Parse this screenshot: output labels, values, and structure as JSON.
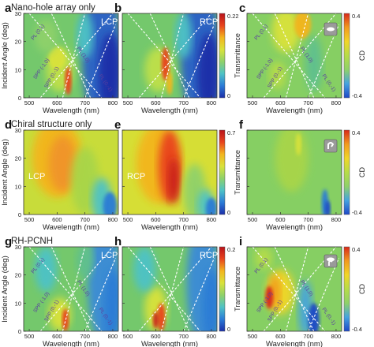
{
  "rows": [
    {
      "title": "Nano-hole array only",
      "panel_letters": [
        "a",
        "b",
        "c"
      ]
    },
    {
      "title": "Chiral structure only",
      "panel_letters": [
        "d",
        "e",
        "f"
      ]
    },
    {
      "title": "RH-PCNH",
      "panel_letters": [
        "g",
        "h",
        "i"
      ]
    }
  ],
  "axes": {
    "xlabel": "Wavelength (nm)",
    "ylabel": "Incident Angle (deg)",
    "x_ticks": [
      "500",
      "600",
      "700",
      "800"
    ],
    "y_ticks": [
      "0",
      "10",
      "20",
      "30"
    ]
  },
  "colorbars": [
    {
      "label": "Transmittance",
      "max": "0.22",
      "min": "0",
      "row": 0,
      "kind": "t"
    },
    {
      "label": "CD",
      "max": "0.4",
      "min": "-0.4",
      "row": 0,
      "kind": "cd"
    },
    {
      "label": "Transmittance",
      "max": "0.7",
      "min": "0",
      "row": 1,
      "kind": "t"
    },
    {
      "label": "CD",
      "max": "0.4",
      "min": "-0.4",
      "row": 1,
      "kind": "cd"
    },
    {
      "label": "Transmittance",
      "max": "0.2",
      "min": "0",
      "row": 2,
      "kind": "t"
    },
    {
      "label": "CD",
      "max": "0.4",
      "min": "-0.4",
      "row": 2,
      "kind": "cd"
    }
  ],
  "panel_labels": [
    {
      "letter": "a",
      "pol": "LCP"
    },
    {
      "letter": "b",
      "pol": "RCP"
    },
    {
      "letter": "c",
      "pol": ""
    },
    {
      "letter": "d",
      "pol": "LCP"
    },
    {
      "letter": "e",
      "pol": "RCP"
    },
    {
      "letter": "f",
      "pol": ""
    },
    {
      "letter": "g",
      "pol": "LCP"
    },
    {
      "letter": "h",
      "pol": "RCP"
    },
    {
      "letter": "i",
      "pol": ""
    }
  ],
  "mode_labels": [
    "PL (0,1)",
    "SPP (-1,0)",
    "SPP (0,-1)",
    "PL (1,0)",
    "PL (0,-1)"
  ],
  "colors": {
    "scale": [
      "#1b2fa8",
      "#2b7bd6",
      "#4ec2c6",
      "#8fd16a",
      "#d9e23b",
      "#f3b51f",
      "#e8431d",
      "#b8121a"
    ],
    "dispersion_lines": "#ffffff"
  },
  "chart_data": [
    {
      "type": "heatmap",
      "panel": "a",
      "xlim": [
        480,
        820
      ],
      "ylim": [
        0,
        30
      ],
      "colormap": "jet",
      "value_range": [
        0,
        0.22
      ],
      "features": "green background with bright yellow/red bands along dispersion lines, blue region at long wavelengths"
    },
    {
      "type": "heatmap",
      "panel": "b",
      "xlim": [
        480,
        820
      ],
      "ylim": [
        0,
        30
      ],
      "colormap": "jet",
      "value_range": [
        0,
        0.22
      ],
      "features": "similar to LCP nano-hole map"
    },
    {
      "type": "heatmap",
      "panel": "c",
      "xlim": [
        480,
        820
      ],
      "ylim": [
        0,
        30
      ],
      "colormap": "jet",
      "value_range": [
        -0.4,
        0.4
      ],
      "features": "mostly near-zero CD with small fluctuations"
    },
    {
      "type": "heatmap",
      "panel": "d",
      "xlim": [
        480,
        820
      ],
      "ylim": [
        0,
        30
      ],
      "colormap": "jet",
      "value_range": [
        0,
        0.7
      ],
      "features": "broad orange band around 560-640 nm"
    },
    {
      "type": "heatmap",
      "panel": "e",
      "xlim": [
        480,
        820
      ],
      "ylim": [
        0,
        30
      ],
      "colormap": "jet",
      "value_range": [
        0,
        0.7
      ],
      "features": "strong red band around 620-680 nm"
    },
    {
      "type": "heatmap",
      "panel": "f",
      "xlim": [
        480,
        820
      ],
      "ylim": [
        0,
        30
      ],
      "colormap": "jet",
      "value_range": [
        -0.4,
        0.4
      ],
      "features": "near-zero CD, small negative feature near 760 nm at low angle"
    },
    {
      "type": "heatmap",
      "panel": "g",
      "xlim": [
        480,
        820
      ],
      "ylim": [
        0,
        30
      ],
      "colormap": "jet",
      "value_range": [
        0,
        0.2
      ],
      "features": "mode bands plus blue region at long wavelengths"
    },
    {
      "type": "heatmap",
      "panel": "h",
      "xlim": [
        480,
        820
      ],
      "ylim": [
        0,
        30
      ],
      "colormap": "jet",
      "value_range": [
        0,
        0.2
      ],
      "features": "red band near 600-640 nm at low angles"
    },
    {
      "type": "heatmap",
      "panel": "i",
      "xlim": [
        480,
        820
      ],
      "ylim": [
        0,
        30
      ],
      "colormap": "jet",
      "value_range": [
        -0.4,
        0.4
      ],
      "features": "positive CD along SPP band near 560-640 nm, negative near 700 nm"
    }
  ]
}
